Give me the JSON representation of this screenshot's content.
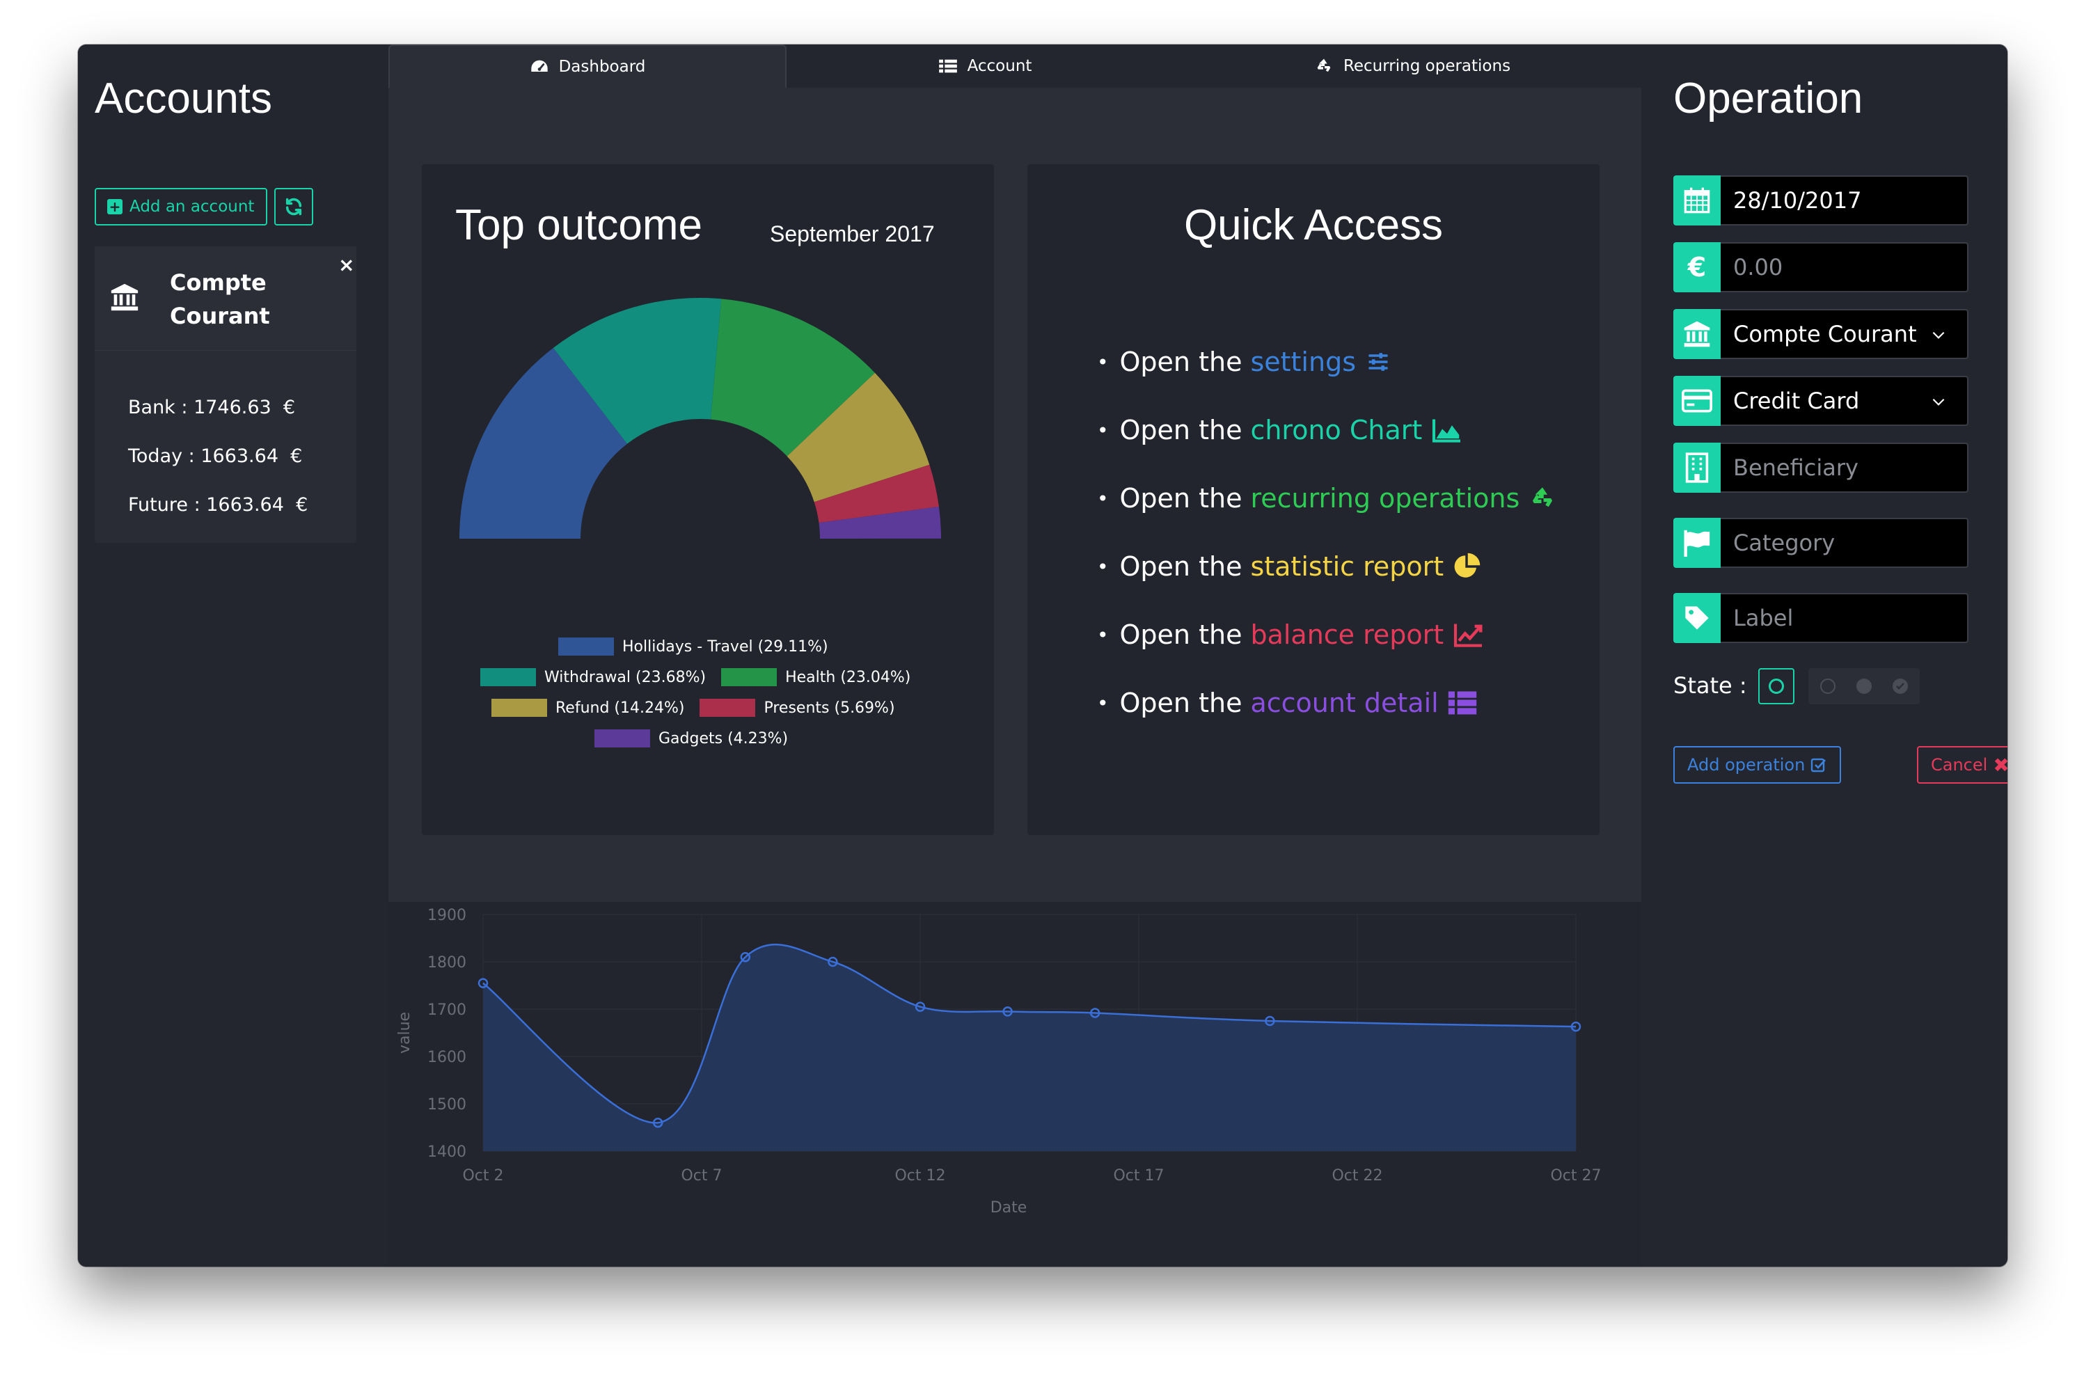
{
  "sidebar": {
    "title": "Accounts",
    "add_account_label": "Add an account",
    "account": {
      "name": "Compte Courant",
      "bank_label": "Bank : 1746.63",
      "today_label": "Today : 1663.64",
      "future_label": "Future : 1663.64",
      "currency": "€"
    }
  },
  "tabs": [
    {
      "label": "Dashboard",
      "icon": "dashboard-icon"
    },
    {
      "label": "Account",
      "icon": "list-icon"
    },
    {
      "label": "Recurring operations",
      "icon": "recycle-icon"
    }
  ],
  "top_outcome": {
    "title": "Top outcome",
    "period": "September 2017",
    "legend": [
      {
        "label": "Hollidays - Travel (29.11%)",
        "color": "#2f5597"
      },
      {
        "label": "Withdrawal (23.68%)",
        "color": "#128e7f"
      },
      {
        "label": "Health (23.04%)",
        "color": "#249449"
      },
      {
        "label": "Refund (14.24%)",
        "color": "#a99a43"
      },
      {
        "label": "Presents (5.69%)",
        "color": "#ab2e4b"
      },
      {
        "label": "Gadgets (4.23%)",
        "color": "#5c3a99"
      }
    ]
  },
  "quick_access": {
    "title": "Quick Access",
    "prefix": "Open the",
    "items": [
      {
        "label": "settings",
        "color": "#3b82dc",
        "icon": "sliders-icon"
      },
      {
        "label": "chrono Chart",
        "color": "#1ad3a8",
        "icon": "area-chart-icon"
      },
      {
        "label": "recurring operations",
        "color": "#2ecc55",
        "icon": "recycle-icon"
      },
      {
        "label": "statistic report",
        "color": "#f5d445",
        "icon": "pie-chart-icon"
      },
      {
        "label": "balance report",
        "color": "#e53a5a",
        "icon": "line-chart-icon"
      },
      {
        "label": "account detail",
        "color": "#8a4ee0",
        "icon": "list-icon"
      }
    ]
  },
  "chart_data": {
    "type": "area",
    "x": [
      "2017-10-02",
      "2017-10-06",
      "2017-10-08",
      "2017-10-10",
      "2017-10-12",
      "2017-10-14",
      "2017-10-16",
      "2017-10-20",
      "2017-10-27"
    ],
    "series": [
      {
        "values": [
          1755,
          1460,
          1810,
          1800,
          1705,
          1695,
          1692,
          1675,
          1663
        ]
      }
    ],
    "xticks": [
      "Oct 2",
      "Oct 7",
      "Oct 12",
      "Oct 17",
      "Oct 22",
      "Oct 27"
    ],
    "yticks": [
      "1900",
      "1800",
      "1700",
      "1600",
      "1500",
      "1400"
    ],
    "xlabel": "Date",
    "ylabel": "value",
    "ylim": [
      1400,
      1900
    ],
    "color": "#3b6fd8"
  },
  "operation": {
    "title": "Operation",
    "date_value": "28/10/2017",
    "amount_placeholder": "0.00",
    "account_value": "Compte Courant",
    "payment_value": "Credit Card",
    "beneficiary_placeholder": "Beneficiary",
    "category_placeholder": "Category",
    "label_placeholder": "Label",
    "state_label": "State :",
    "add_label": "Add operation",
    "cancel_label": "Cancel"
  }
}
